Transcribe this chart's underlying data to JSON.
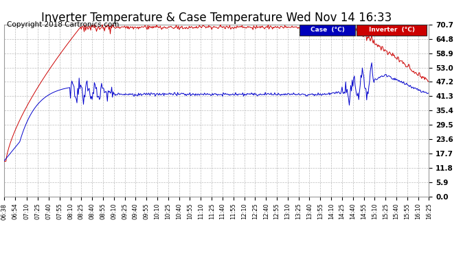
{
  "title": "Inverter Temperature & Case Temperature Wed Nov 14 16:33",
  "copyright": "Copyright 2018 Cartronics.com",
  "yticks": [
    0.0,
    5.9,
    11.8,
    17.7,
    23.6,
    29.5,
    35.4,
    41.3,
    47.2,
    53.0,
    58.9,
    64.8,
    70.7
  ],
  "ylim": [
    0.0,
    70.7
  ],
  "background_color": "#ffffff",
  "grid_color": "#bbbbbb",
  "case_color": "#0000cc",
  "inverter_color": "#cc0000",
  "legend_case_bg": "#0000bb",
  "legend_inv_bg": "#cc0000",
  "legend_text_color": "#ffffff",
  "title_fontsize": 12,
  "copyright_fontsize": 7.5,
  "xtick_labels": [
    "06:38",
    "06:54",
    "07:10",
    "07:25",
    "07:40",
    "07:55",
    "08:10",
    "08:25",
    "08:40",
    "08:55",
    "09:10",
    "09:25",
    "09:40",
    "09:55",
    "10:10",
    "10:25",
    "10:40",
    "10:55",
    "11:10",
    "11:25",
    "11:40",
    "11:55",
    "12:10",
    "12:25",
    "12:40",
    "12:55",
    "13:10",
    "13:25",
    "13:40",
    "13:55",
    "14:10",
    "14:25",
    "14:40",
    "14:55",
    "15:10",
    "15:25",
    "15:40",
    "15:55",
    "16:10",
    "16:25"
  ]
}
